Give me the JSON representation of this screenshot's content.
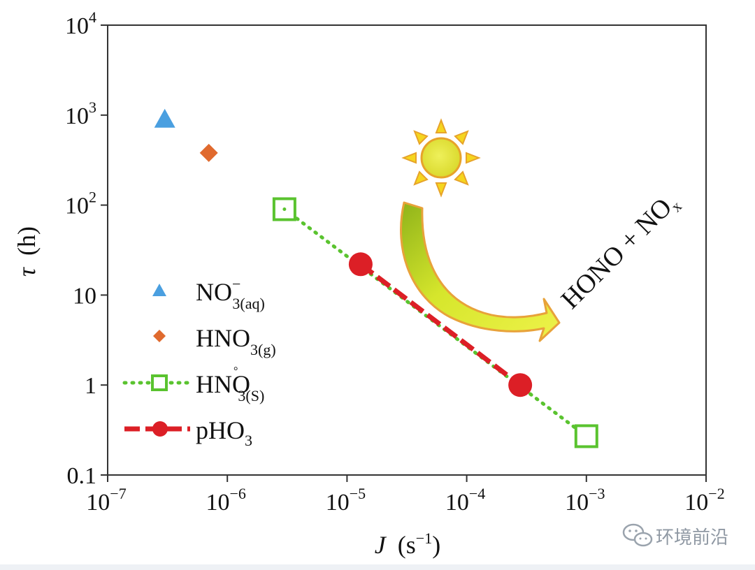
{
  "chart_data": {
    "type": "scatter",
    "xscale": "log",
    "yscale": "log",
    "xlim": [
      1e-07,
      0.01
    ],
    "ylim": [
      0.1,
      10000
    ],
    "xlabel": {
      "var": "J",
      "unit": "(s",
      "exp": "−1",
      "close": ")"
    },
    "ylabel": {
      "var": "τ",
      "unit": "(h)"
    },
    "x_ticks": [
      {
        "value": 1e-07,
        "base": "10",
        "exp": "−7"
      },
      {
        "value": 1e-06,
        "base": "10",
        "exp": "−6"
      },
      {
        "value": 1e-05,
        "base": "10",
        "exp": "−5"
      },
      {
        "value": 0.0001,
        "base": "10",
        "exp": "−4"
      },
      {
        "value": 0.001,
        "base": "10",
        "exp": "−3"
      },
      {
        "value": 0.01,
        "base": "10",
        "exp": "−2"
      }
    ],
    "y_ticks": [
      {
        "value": 0.1,
        "label": "0.1"
      },
      {
        "value": 1,
        "label": "1"
      },
      {
        "value": 10,
        "label": "10"
      },
      {
        "value": 100,
        "base": "10",
        "exp": "2"
      },
      {
        "value": 1000,
        "base": "10",
        "exp": "3"
      },
      {
        "value": 10000,
        "base": "10",
        "exp": "4"
      }
    ],
    "series": [
      {
        "id": "no3-aq",
        "legend": {
          "main": "NO",
          "sub": "3(aq)",
          "sup": "−"
        },
        "marker": "triangle",
        "color": "#4a9fe0",
        "line": "none",
        "points": [
          {
            "x": 3e-07,
            "y": 900
          }
        ]
      },
      {
        "id": "hno3-g",
        "legend": {
          "main": "HNO",
          "sub": "3(g)"
        },
        "marker": "diamond",
        "color": "#e06a2e",
        "line": "none",
        "points": [
          {
            "x": 7e-07,
            "y": 380
          }
        ]
      },
      {
        "id": "hno3-s",
        "legend": {
          "main": "HNO",
          "sub": "3(S)",
          "sup": "°"
        },
        "marker": "square-open",
        "color": "#5ac32f",
        "line": "dotted",
        "points": [
          {
            "x": 3e-06,
            "y": 90
          },
          {
            "x": 0.001,
            "y": 0.27
          }
        ]
      },
      {
        "id": "pho3",
        "legend": {
          "main": "pHO",
          "sub": "3"
        },
        "marker": "circle",
        "color": "#dc1f26",
        "line": "dashed",
        "points": [
          {
            "x": 1.3e-05,
            "y": 22
          },
          {
            "x": 0.00028,
            "y": 1.0
          }
        ]
      }
    ],
    "annotations": {
      "product": "HONO + NO",
      "product_sub": "x"
    }
  },
  "watermark": {
    "text": "环境前沿",
    "icon": "wechat-icon"
  },
  "colors": {
    "sun": "#f4d21f",
    "sun_core": "#e6e04a",
    "arrow": "#d8e82a",
    "arrow_dark": "#9cbc1e",
    "arrow_edge": "#e8a23a",
    "product_text": "#f0a030"
  }
}
